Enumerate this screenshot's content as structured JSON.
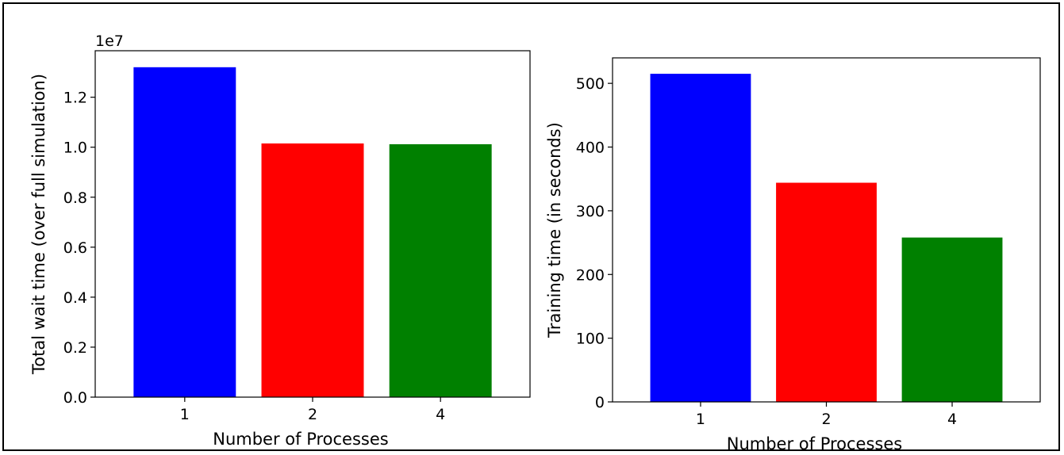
{
  "chart_data": [
    {
      "type": "bar",
      "categories": [
        "1",
        "2",
        "4"
      ],
      "values": [
        13200000,
        10150000,
        10120000
      ],
      "colors": [
        "#0000ff",
        "#ff0000",
        "#008000"
      ],
      "xlabel": "Number of Processes",
      "ylabel": "Total wait time (over full simulation)",
      "ylim": [
        0,
        13860000
      ],
      "yticks": [
        0,
        2000000,
        4000000,
        6000000,
        8000000,
        10000000,
        12000000
      ],
      "ytick_labels": [
        "0.0",
        "0.2",
        "0.4",
        "0.6",
        "0.8",
        "1.0",
        "1.2"
      ],
      "offset_text": "1e7",
      "grid": false,
      "legend": "none"
    },
    {
      "type": "bar",
      "categories": [
        "1",
        "2",
        "4"
      ],
      "values": [
        515,
        344,
        258
      ],
      "colors": [
        "#0000ff",
        "#ff0000",
        "#008000"
      ],
      "xlabel": "Number of Processes",
      "ylabel": "Training time (in seconds)",
      "ylim": [
        0,
        540
      ],
      "yticks": [
        0,
        100,
        200,
        300,
        400,
        500
      ],
      "ytick_labels": [
        "0",
        "100",
        "200",
        "300",
        "400",
        "500"
      ],
      "grid": false,
      "legend": "none"
    }
  ]
}
